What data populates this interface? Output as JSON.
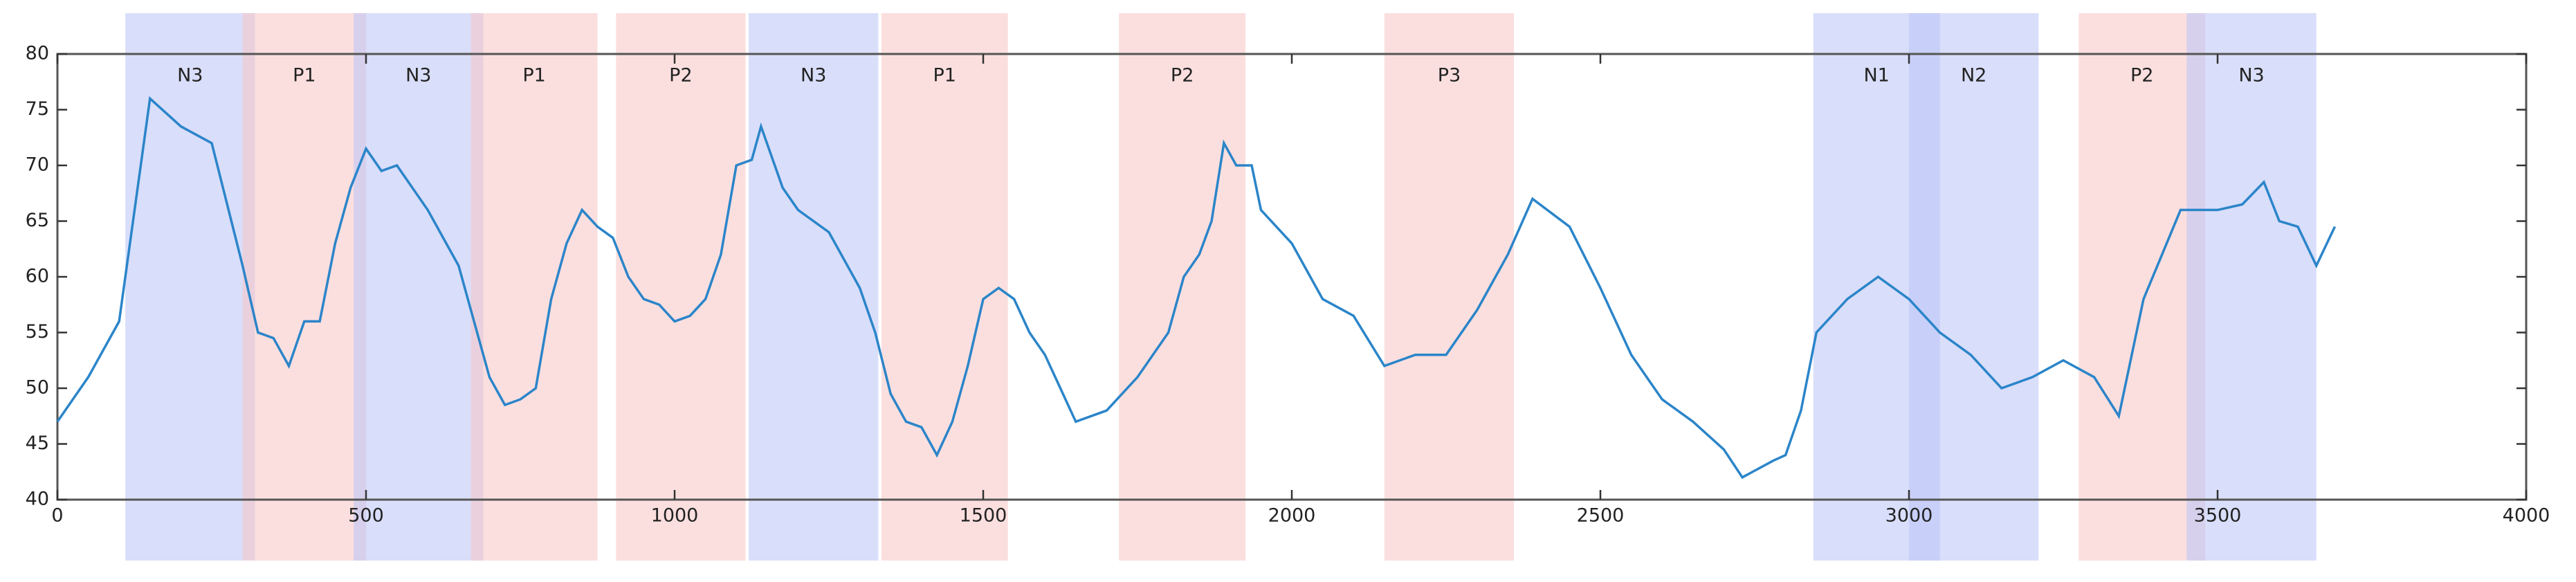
{
  "chart_data": {
    "type": "line",
    "x": [
      0,
      50,
      100,
      150,
      200,
      250,
      300,
      325,
      350,
      375,
      400,
      425,
      450,
      475,
      500,
      525,
      550,
      600,
      650,
      700,
      725,
      750,
      775,
      800,
      825,
      850,
      875,
      900,
      925,
      950,
      975,
      1000,
      1025,
      1050,
      1075,
      1100,
      1125,
      1140,
      1175,
      1200,
      1250,
      1300,
      1325,
      1350,
      1375,
      1400,
      1425,
      1450,
      1475,
      1500,
      1525,
      1550,
      1575,
      1600,
      1650,
      1700,
      1750,
      1800,
      1825,
      1850,
      1870,
      1890,
      1910,
      1935,
      1950,
      2000,
      2050,
      2100,
      2150,
      2200,
      2250,
      2300,
      2350,
      2390,
      2450,
      2500,
      2550,
      2600,
      2650,
      2700,
      2730,
      2780,
      2800,
      2825,
      2850,
      2900,
      2950,
      3000,
      3050,
      3100,
      3150,
      3200,
      3250,
      3300,
      3340,
      3380,
      3440,
      3500,
      3540,
      3575,
      3600,
      3630,
      3660,
      3690
    ],
    "series": [
      {
        "color": "#2b85c9",
        "values": [
          47,
          51,
          56,
          76,
          73.5,
          72,
          61,
          55,
          54.5,
          52,
          56,
          56,
          63,
          68,
          71.5,
          69.5,
          70,
          66,
          61,
          51,
          48.5,
          49,
          50,
          58,
          63,
          66,
          64.5,
          63.5,
          60,
          58,
          57.5,
          56,
          56.5,
          58,
          62,
          70,
          70.5,
          73.5,
          68,
          66,
          64,
          59,
          55,
          49.5,
          47,
          46.5,
          44,
          47,
          52,
          58,
          59,
          58,
          55,
          53,
          47,
          48,
          51,
          55,
          60,
          62,
          65,
          72,
          70,
          70,
          66,
          63,
          58,
          56.5,
          52,
          53,
          53,
          57,
          62,
          67,
          64.5,
          59,
          53,
          49,
          47,
          44.5,
          42,
          43.5,
          44,
          48,
          55,
          58,
          60,
          58,
          55,
          53,
          50,
          51,
          52.5,
          51,
          47.5,
          58,
          66,
          66,
          66.5,
          68.5,
          65,
          64.5,
          61,
          64.5
        ]
      }
    ],
    "bands": [
      {
        "label": "N3",
        "start": 110,
        "end": 320,
        "color": "#b9c3f6"
      },
      {
        "label": "P1",
        "start": 300,
        "end": 500,
        "color": "#f8c4c4"
      },
      {
        "label": "N3",
        "start": 480,
        "end": 690,
        "color": "#b9c3f6"
      },
      {
        "label": "P1",
        "start": 670,
        "end": 875,
        "color": "#f8c4c4"
      },
      {
        "label": "P2",
        "start": 905,
        "end": 1115,
        "color": "#f8c4c4"
      },
      {
        "label": "N3",
        "start": 1120,
        "end": 1330,
        "color": "#b9c3f6"
      },
      {
        "label": "P1",
        "start": 1335,
        "end": 1540,
        "color": "#f8c4c4"
      },
      {
        "label": "P2",
        "start": 1720,
        "end": 1925,
        "color": "#f8c4c4"
      },
      {
        "label": "P3",
        "start": 2150,
        "end": 2360,
        "color": "#f8c4c4"
      },
      {
        "label": "N1",
        "start": 2845,
        "end": 3050,
        "color": "#b9c3f6"
      },
      {
        "label": "N2",
        "start": 3000,
        "end": 3210,
        "color": "#b9c3f6"
      },
      {
        "label": "P2",
        "start": 3275,
        "end": 3480,
        "color": "#f8c4c4"
      },
      {
        "label": "N3",
        "start": 3450,
        "end": 3660,
        "color": "#b9c3f6"
      }
    ],
    "xlim": [
      0,
      4000
    ],
    "ylim": [
      40,
      80
    ],
    "xticks": [
      0,
      500,
      1000,
      1500,
      2000,
      2500,
      3000,
      3500,
      4000
    ],
    "yticks": [
      40,
      45,
      50,
      55,
      60,
      65,
      70,
      75,
      80
    ]
  }
}
